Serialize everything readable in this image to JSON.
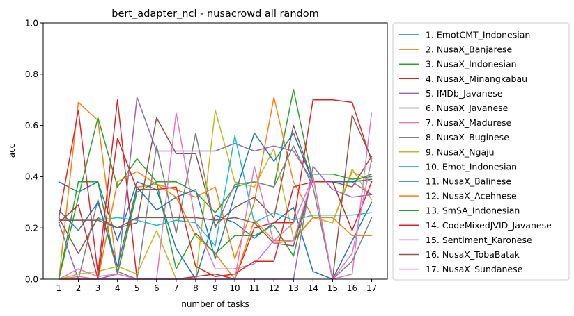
{
  "chart_data": {
    "type": "line",
    "title": "bert_adapter_ncl - nusacrowd all random",
    "xlabel": "number of tasks",
    "ylabel": "acc",
    "x": [
      1,
      2,
      3,
      4,
      5,
      6,
      7,
      8,
      9,
      10,
      11,
      12,
      13,
      14,
      15,
      16,
      17
    ],
    "ylim": [
      0,
      1
    ],
    "yticks": [
      "0.0",
      "0.2",
      "0.4",
      "0.6",
      "0.8",
      "1.0"
    ],
    "grid": false,
    "legend_position": "outside right",
    "series": [
      {
        "name": "1. EmotCMT_Indonesian",
        "color": "#1f77b4",
        "values": [
          0.38,
          0.34,
          0.38,
          0.15,
          0.38,
          0.35,
          0.12,
          0.0,
          0.25,
          0.22,
          0.16,
          0.22,
          0.28,
          0.03,
          0.0,
          0.15,
          0.3
        ]
      },
      {
        "name": "2. NusaX_Banjarese",
        "color": "#ff7f0e",
        "values": [
          0.0,
          0.69,
          0.62,
          0.02,
          0.36,
          0.37,
          0.35,
          0.32,
          0.36,
          0.08,
          0.3,
          0.71,
          0.38,
          0.24,
          0.22,
          0.42,
          0.38
        ]
      },
      {
        "name": "3. NusaX_Indonesian",
        "color": "#2ca02c",
        "values": [
          0.0,
          0.38,
          0.38,
          0.02,
          0.34,
          0.38,
          0.38,
          0.34,
          0.26,
          0.36,
          0.38,
          0.36,
          0.74,
          0.38,
          0.38,
          0.38,
          0.41
        ]
      },
      {
        "name": "4. NusaX_Minangkabau",
        "color": "#d62728",
        "values": [
          0.24,
          0.66,
          0.02,
          0.7,
          0.0,
          0.0,
          0.0,
          0.01,
          0.02,
          0.0,
          0.2,
          0.22,
          0.22,
          0.7,
          0.7,
          0.69,
          0.46
        ]
      },
      {
        "name": "5. IMDb_Javanese",
        "color": "#9467bd",
        "values": [
          0.0,
          0.0,
          0.0,
          0.02,
          0.71,
          0.5,
          0.5,
          0.5,
          0.5,
          0.53,
          0.5,
          0.52,
          0.5,
          0.38,
          0.38,
          0.38,
          0.33
        ]
      },
      {
        "name": "6. NusaX_Javanese",
        "color": "#8c564b",
        "values": [
          0.24,
          0.1,
          0.24,
          0.2,
          0.22,
          0.63,
          0.49,
          0.49,
          0.21,
          0.28,
          0.32,
          0.24,
          0.6,
          0.38,
          0.38,
          0.36,
          0.48
        ]
      },
      {
        "name": "7. NusaX_Madurese",
        "color": "#e377c2",
        "values": [
          0.0,
          0.01,
          0.0,
          0.0,
          0.0,
          0.0,
          0.65,
          0.22,
          0.04,
          0.04,
          0.06,
          0.15,
          0.22,
          0.4,
          0.0,
          0.02,
          0.65
        ]
      },
      {
        "name": "8. NusaX_Buginese",
        "color": "#7f7f7f",
        "values": [
          0.0,
          0.0,
          0.31,
          0.03,
          0.0,
          0.52,
          0.18,
          0.57,
          0.2,
          0.37,
          0.38,
          0.36,
          0.52,
          0.36,
          0.0,
          0.07,
          0.24
        ]
      },
      {
        "name": "9. NusaX_Ngaju",
        "color": "#bcbd22",
        "values": [
          0.0,
          0.02,
          0.03,
          0.05,
          0.02,
          0.19,
          0.0,
          0.0,
          0.66,
          0.38,
          0.36,
          0.51,
          0.16,
          0.24,
          0.22,
          0.43,
          0.31
        ]
      },
      {
        "name": "10. Emot_Indonesian",
        "color": "#17becf",
        "values": [
          0.23,
          0.23,
          0.23,
          0.24,
          0.23,
          0.21,
          0.23,
          0.22,
          0.13,
          0.56,
          0.22,
          0.26,
          0.23,
          0.25,
          0.25,
          0.25,
          0.26
        ]
      },
      {
        "name": "11. NusaX_Balinese",
        "color": "#1f77b4",
        "values": [
          0.27,
          0.19,
          0.3,
          0.05,
          0.36,
          0.27,
          0.32,
          0.35,
          0.08,
          0.33,
          0.57,
          0.46,
          0.57,
          0.38,
          0.38,
          0.38,
          0.39
        ]
      },
      {
        "name": "12. NusaX_Acehnese",
        "color": "#ff7f0e",
        "values": [
          0.0,
          0.0,
          0.0,
          0.38,
          0.42,
          0.37,
          0.32,
          0.17,
          0.1,
          0.0,
          0.23,
          0.15,
          0.15,
          0.24,
          0.24,
          0.17,
          0.17
        ]
      },
      {
        "name": "13. SmSA_Indonesian",
        "color": "#2ca02c",
        "values": [
          0.0,
          0.32,
          0.63,
          0.36,
          0.47,
          0.38,
          0.04,
          0.18,
          0.1,
          0.17,
          0.17,
          0.21,
          0.09,
          0.41,
          0.41,
          0.39,
          0.4
        ]
      },
      {
        "name": "14. CodeMixedJVID_Javanese",
        "color": "#d62728",
        "values": [
          0.22,
          0.29,
          0.0,
          0.55,
          0.35,
          0.35,
          0.36,
          0.05,
          0.01,
          0.02,
          0.07,
          0.07,
          0.36,
          0.38,
          0.38,
          0.19,
          0.38
        ]
      },
      {
        "name": "15. Sentiment_Karonese",
        "color": "#9467bd",
        "values": [
          0.22,
          0.0,
          0.0,
          0.0,
          0.0,
          0.0,
          0.0,
          0.0,
          0.0,
          0.0,
          0.0,
          0.0,
          0.0,
          0.44,
          0.35,
          0.32,
          0.33
        ]
      },
      {
        "name": "16. NusaX_TobaBatak",
        "color": "#8c564b",
        "values": [
          0.23,
          0.23,
          0.23,
          0.2,
          0.24,
          0.24,
          0.24,
          0.24,
          0.23,
          0.24,
          0.22,
          0.14,
          0.13,
          0.4,
          0.0,
          0.64,
          0.47
        ]
      },
      {
        "name": "17. NusaX_Sundanese",
        "color": "#e377c2",
        "values": [
          0.0,
          0.04,
          0.01,
          0.02,
          0.0,
          0.0,
          0.0,
          0.0,
          0.0,
          0.0,
          0.44,
          0.14,
          0.15,
          0.4,
          0.0,
          0.1,
          0.47
        ]
      }
    ]
  }
}
